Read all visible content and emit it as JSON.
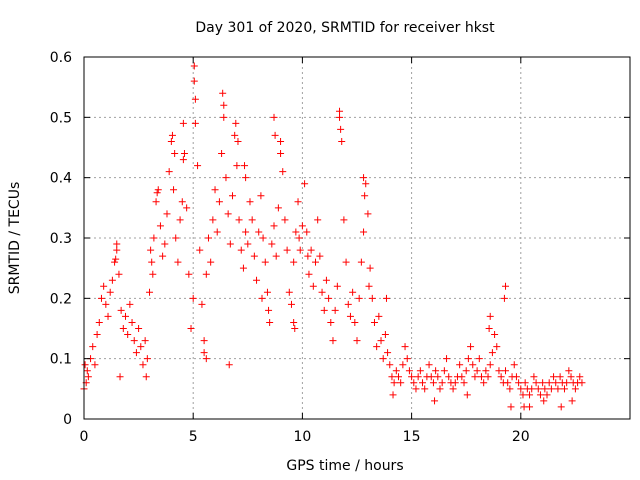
{
  "chart_data": {
    "type": "scatter",
    "title": "Day 301 of 2020, SRMTID for receiver hkst",
    "xlabel": "GPS time / hours",
    "ylabel": "SRMTID / TECUs",
    "xlim": [
      0,
      25
    ],
    "ylim": [
      0,
      0.6
    ],
    "xticks": [
      0,
      5,
      10,
      15,
      20
    ],
    "xtick_labels": [
      "0",
      "5",
      "10",
      "15",
      "20"
    ],
    "yticks": [
      0,
      0.1,
      0.2,
      0.3,
      0.4,
      0.5,
      0.6
    ],
    "ytick_labels": [
      "0",
      "0.1",
      "0.2",
      "0.3",
      "0.4",
      "0.5",
      "0.6"
    ],
    "grid": true,
    "marker": "plus",
    "color": "#ff0000",
    "series": [
      {
        "name": "SRMTID",
        "points": [
          [
            0.0,
            0.05
          ],
          [
            0.05,
            0.09
          ],
          [
            0.1,
            0.06
          ],
          [
            0.15,
            0.08
          ],
          [
            0.2,
            0.07
          ],
          [
            0.3,
            0.1
          ],
          [
            0.4,
            0.12
          ],
          [
            0.5,
            0.09
          ],
          [
            0.6,
            0.14
          ],
          [
            0.7,
            0.16
          ],
          [
            0.8,
            0.2
          ],
          [
            0.9,
            0.22
          ],
          [
            1.0,
            0.19
          ],
          [
            1.1,
            0.17
          ],
          [
            1.2,
            0.21
          ],
          [
            1.3,
            0.23
          ],
          [
            1.4,
            0.26
          ],
          [
            1.5,
            0.28
          ],
          [
            1.6,
            0.24
          ],
          [
            1.7,
            0.18
          ],
          [
            1.8,
            0.15
          ],
          [
            1.9,
            0.17
          ],
          [
            2.0,
            0.14
          ],
          [
            2.1,
            0.19
          ],
          [
            2.2,
            0.16
          ],
          [
            2.3,
            0.13
          ],
          [
            2.4,
            0.11
          ],
          [
            2.5,
            0.15
          ],
          [
            2.6,
            0.12
          ],
          [
            2.7,
            0.09
          ],
          [
            2.8,
            0.13
          ],
          [
            2.9,
            0.1
          ],
          [
            3.0,
            0.21
          ],
          [
            3.1,
            0.26
          ],
          [
            3.2,
            0.3
          ],
          [
            3.3,
            0.36
          ],
          [
            3.4,
            0.38
          ],
          [
            3.5,
            0.32
          ],
          [
            3.6,
            0.27
          ],
          [
            3.7,
            0.29
          ],
          [
            3.8,
            0.34
          ],
          [
            3.9,
            0.41
          ],
          [
            4.0,
            0.46
          ],
          [
            4.1,
            0.38
          ],
          [
            4.2,
            0.3
          ],
          [
            4.3,
            0.26
          ],
          [
            4.4,
            0.33
          ],
          [
            4.5,
            0.36
          ],
          [
            4.6,
            0.44
          ],
          [
            4.7,
            0.35
          ],
          [
            4.8,
            0.24
          ],
          [
            4.9,
            0.15
          ],
          [
            5.0,
            0.2
          ],
          [
            5.05,
            0.585
          ],
          [
            5.1,
            0.53
          ],
          [
            5.2,
            0.42
          ],
          [
            5.3,
            0.28
          ],
          [
            5.4,
            0.19
          ],
          [
            5.5,
            0.13
          ],
          [
            5.6,
            0.24
          ],
          [
            5.7,
            0.3
          ],
          [
            5.8,
            0.26
          ],
          [
            5.9,
            0.33
          ],
          [
            6.0,
            0.38
          ],
          [
            6.1,
            0.31
          ],
          [
            6.2,
            0.36
          ],
          [
            6.3,
            0.44
          ],
          [
            6.4,
            0.52
          ],
          [
            6.5,
            0.4
          ],
          [
            6.6,
            0.34
          ],
          [
            6.7,
            0.29
          ],
          [
            6.8,
            0.37
          ],
          [
            6.9,
            0.47
          ],
          [
            7.0,
            0.42
          ],
          [
            7.1,
            0.33
          ],
          [
            7.2,
            0.28
          ],
          [
            7.3,
            0.25
          ],
          [
            7.4,
            0.31
          ],
          [
            7.5,
            0.29
          ],
          [
            7.6,
            0.36
          ],
          [
            7.7,
            0.33
          ],
          [
            7.8,
            0.27
          ],
          [
            7.9,
            0.23
          ],
          [
            8.0,
            0.31
          ],
          [
            8.1,
            0.37
          ],
          [
            8.2,
            0.3
          ],
          [
            8.3,
            0.26
          ],
          [
            8.4,
            0.21
          ],
          [
            8.5,
            0.16
          ],
          [
            8.6,
            0.29
          ],
          [
            8.7,
            0.32
          ],
          [
            8.8,
            0.27
          ],
          [
            8.9,
            0.35
          ],
          [
            9.0,
            0.46
          ],
          [
            9.1,
            0.41
          ],
          [
            9.2,
            0.33
          ],
          [
            9.3,
            0.28
          ],
          [
            9.4,
            0.21
          ],
          [
            9.5,
            0.19
          ],
          [
            9.6,
            0.26
          ],
          [
            9.7,
            0.31
          ],
          [
            9.8,
            0.36
          ],
          [
            9.9,
            0.28
          ],
          [
            10.0,
            0.32
          ],
          [
            10.1,
            0.39
          ],
          [
            10.2,
            0.31
          ],
          [
            10.3,
            0.24
          ],
          [
            10.4,
            0.28
          ],
          [
            10.5,
            0.22
          ],
          [
            10.6,
            0.26
          ],
          [
            10.7,
            0.33
          ],
          [
            10.8,
            0.27
          ],
          [
            10.9,
            0.21
          ],
          [
            11.0,
            0.18
          ],
          [
            11.1,
            0.23
          ],
          [
            11.2,
            0.2
          ],
          [
            11.3,
            0.16
          ],
          [
            11.4,
            0.13
          ],
          [
            11.5,
            0.18
          ],
          [
            11.6,
            0.22
          ],
          [
            11.7,
            0.51
          ],
          [
            11.8,
            0.46
          ],
          [
            11.9,
            0.33
          ],
          [
            12.0,
            0.26
          ],
          [
            12.1,
            0.19
          ],
          [
            12.2,
            0.17
          ],
          [
            12.3,
            0.21
          ],
          [
            12.4,
            0.16
          ],
          [
            12.5,
            0.13
          ],
          [
            12.6,
            0.2
          ],
          [
            12.7,
            0.26
          ],
          [
            12.8,
            0.31
          ],
          [
            12.9,
            0.39
          ],
          [
            13.0,
            0.34
          ],
          [
            13.1,
            0.25
          ],
          [
            13.2,
            0.2
          ],
          [
            13.3,
            0.16
          ],
          [
            13.4,
            0.12
          ],
          [
            13.5,
            0.17
          ],
          [
            13.6,
            0.13
          ],
          [
            13.7,
            0.1
          ],
          [
            13.8,
            0.14
          ],
          [
            13.9,
            0.11
          ],
          [
            14.0,
            0.09
          ],
          [
            14.1,
            0.07
          ],
          [
            14.2,
            0.06
          ],
          [
            14.3,
            0.08
          ],
          [
            14.4,
            0.07
          ],
          [
            14.5,
            0.06
          ],
          [
            14.6,
            0.09
          ],
          [
            14.7,
            0.12
          ],
          [
            14.8,
            0.1
          ],
          [
            14.9,
            0.08
          ],
          [
            15.0,
            0.07
          ],
          [
            15.1,
            0.06
          ],
          [
            15.2,
            0.05
          ],
          [
            15.3,
            0.07
          ],
          [
            15.4,
            0.08
          ],
          [
            15.5,
            0.06
          ],
          [
            15.6,
            0.05
          ],
          [
            15.7,
            0.07
          ],
          [
            15.8,
            0.09
          ],
          [
            15.9,
            0.07
          ],
          [
            16.0,
            0.06
          ],
          [
            16.1,
            0.08
          ],
          [
            16.2,
            0.07
          ],
          [
            16.3,
            0.05
          ],
          [
            16.4,
            0.06
          ],
          [
            16.5,
            0.08
          ],
          [
            16.6,
            0.1
          ],
          [
            16.7,
            0.07
          ],
          [
            16.8,
            0.06
          ],
          [
            16.9,
            0.05
          ],
          [
            17.0,
            0.06
          ],
          [
            17.1,
            0.07
          ],
          [
            17.2,
            0.09
          ],
          [
            17.3,
            0.07
          ],
          [
            17.4,
            0.06
          ],
          [
            17.5,
            0.08
          ],
          [
            17.6,
            0.1
          ],
          [
            17.7,
            0.12
          ],
          [
            17.8,
            0.09
          ],
          [
            17.9,
            0.07
          ],
          [
            18.0,
            0.08
          ],
          [
            18.1,
            0.1
          ],
          [
            18.2,
            0.07
          ],
          [
            18.3,
            0.06
          ],
          [
            18.4,
            0.08
          ],
          [
            18.5,
            0.07
          ],
          [
            18.6,
            0.09
          ],
          [
            18.7,
            0.11
          ],
          [
            18.8,
            0.14
          ],
          [
            18.9,
            0.12
          ],
          [
            19.0,
            0.08
          ],
          [
            19.1,
            0.07
          ],
          [
            19.2,
            0.06
          ],
          [
            19.3,
            0.08
          ],
          [
            19.4,
            0.06
          ],
          [
            19.5,
            0.05
          ],
          [
            19.6,
            0.07
          ],
          [
            19.7,
            0.09
          ],
          [
            19.8,
            0.07
          ],
          [
            19.9,
            0.06
          ],
          [
            20.0,
            0.05
          ],
          [
            20.1,
            0.04
          ],
          [
            20.2,
            0.06
          ],
          [
            20.3,
            0.05
          ],
          [
            20.4,
            0.04
          ],
          [
            20.5,
            0.05
          ],
          [
            20.6,
            0.07
          ],
          [
            20.7,
            0.06
          ],
          [
            20.8,
            0.05
          ],
          [
            20.9,
            0.04
          ],
          [
            21.0,
            0.06
          ],
          [
            21.1,
            0.05
          ],
          [
            21.2,
            0.04
          ],
          [
            21.3,
            0.06
          ],
          [
            21.4,
            0.05
          ],
          [
            21.5,
            0.07
          ],
          [
            21.6,
            0.06
          ],
          [
            21.7,
            0.05
          ],
          [
            21.8,
            0.07
          ],
          [
            21.9,
            0.06
          ],
          [
            22.0,
            0.05
          ],
          [
            22.1,
            0.06
          ],
          [
            22.2,
            0.08
          ],
          [
            22.3,
            0.07
          ],
          [
            22.4,
            0.06
          ],
          [
            22.5,
            0.05
          ],
          [
            22.6,
            0.06
          ],
          [
            22.7,
            0.07
          ],
          [
            22.8,
            0.06
          ],
          [
            1.45,
            0.265
          ],
          [
            1.5,
            0.29
          ],
          [
            3.35,
            0.375
          ],
          [
            4.05,
            0.47
          ],
          [
            4.55,
            0.49
          ],
          [
            5.05,
            0.56
          ],
          [
            5.1,
            0.49
          ],
          [
            6.35,
            0.54
          ],
          [
            6.4,
            0.5
          ],
          [
            6.95,
            0.49
          ],
          [
            7.05,
            0.46
          ],
          [
            8.7,
            0.5
          ],
          [
            8.75,
            0.47
          ],
          [
            9.0,
            0.44
          ],
          [
            11.7,
            0.5
          ],
          [
            11.75,
            0.48
          ],
          [
            12.8,
            0.4
          ],
          [
            12.85,
            0.37
          ],
          [
            6.65,
            0.09
          ],
          [
            9.6,
            0.16
          ],
          [
            9.65,
            0.15
          ],
          [
            19.25,
            0.2
          ],
          [
            19.3,
            0.22
          ],
          [
            18.6,
            0.17
          ],
          [
            18.55,
            0.15
          ],
          [
            4.55,
            0.43
          ],
          [
            4.15,
            0.44
          ],
          [
            7.35,
            0.42
          ],
          [
            7.4,
            0.4
          ],
          [
            5.5,
            0.11
          ],
          [
            5.6,
            0.1
          ],
          [
            2.85,
            0.07
          ],
          [
            1.65,
            0.07
          ],
          [
            14.15,
            0.04
          ],
          [
            20.15,
            0.02
          ],
          [
            20.4,
            0.02
          ],
          [
            21.05,
            0.03
          ],
          [
            21.85,
            0.02
          ],
          [
            22.35,
            0.03
          ],
          [
            16.05,
            0.03
          ],
          [
            17.55,
            0.04
          ],
          [
            19.55,
            0.02
          ],
          [
            13.85,
            0.2
          ],
          [
            13.05,
            0.22
          ],
          [
            10.25,
            0.27
          ],
          [
            9.85,
            0.3
          ],
          [
            3.05,
            0.28
          ],
          [
            3.15,
            0.24
          ],
          [
            8.15,
            0.2
          ],
          [
            8.45,
            0.18
          ]
        ]
      }
    ]
  }
}
